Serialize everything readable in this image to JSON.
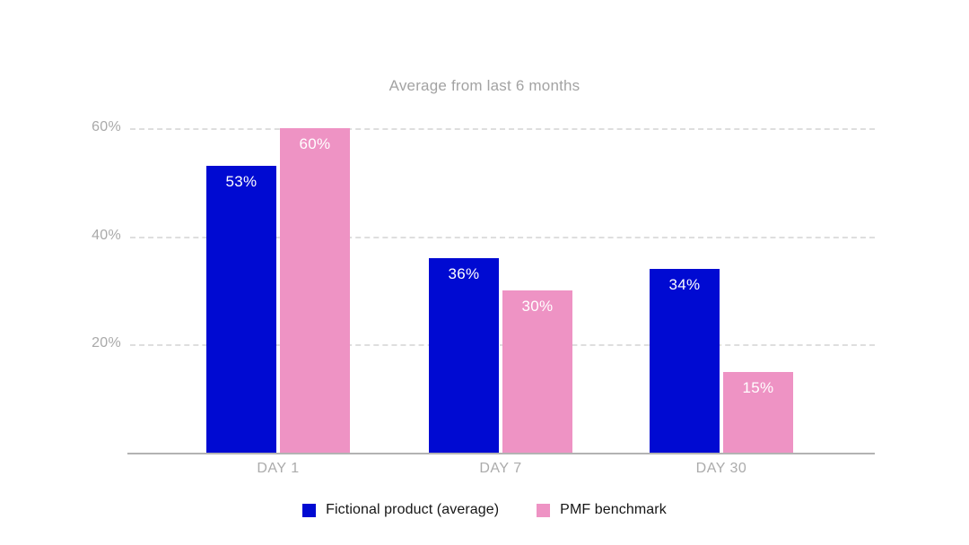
{
  "chart_data": {
    "type": "bar",
    "title": "Average from last 6 months",
    "categories": [
      "DAY 1",
      "DAY 7",
      "DAY 30"
    ],
    "series": [
      {
        "name": "Fictional product (average)",
        "color": "#000ad2",
        "values": [
          53,
          36,
          34
        ]
      },
      {
        "name": "PMF benchmark",
        "color": "#ee93c4",
        "values": [
          60,
          30,
          15
        ]
      }
    ],
    "value_suffix": "%",
    "yticks": [
      {
        "label": "20%",
        "value": 20
      },
      {
        "label": "40%",
        "value": 40
      },
      {
        "label": "60%",
        "value": 60
      }
    ],
    "ylim": [
      0,
      60
    ],
    "grid": "horizontal-dashed",
    "legend_position": "bottom"
  },
  "colors": {
    "series_blue": "#000ad2",
    "series_pink": "#ee93c4",
    "axis_text": "#a9a9a9",
    "title_text": "#a3a3a3",
    "gridline": "#dedede",
    "axis_line": "#b3b3b3",
    "bar_label": "#ffffff",
    "legend_text": "#161616",
    "background": "#ffffff"
  }
}
